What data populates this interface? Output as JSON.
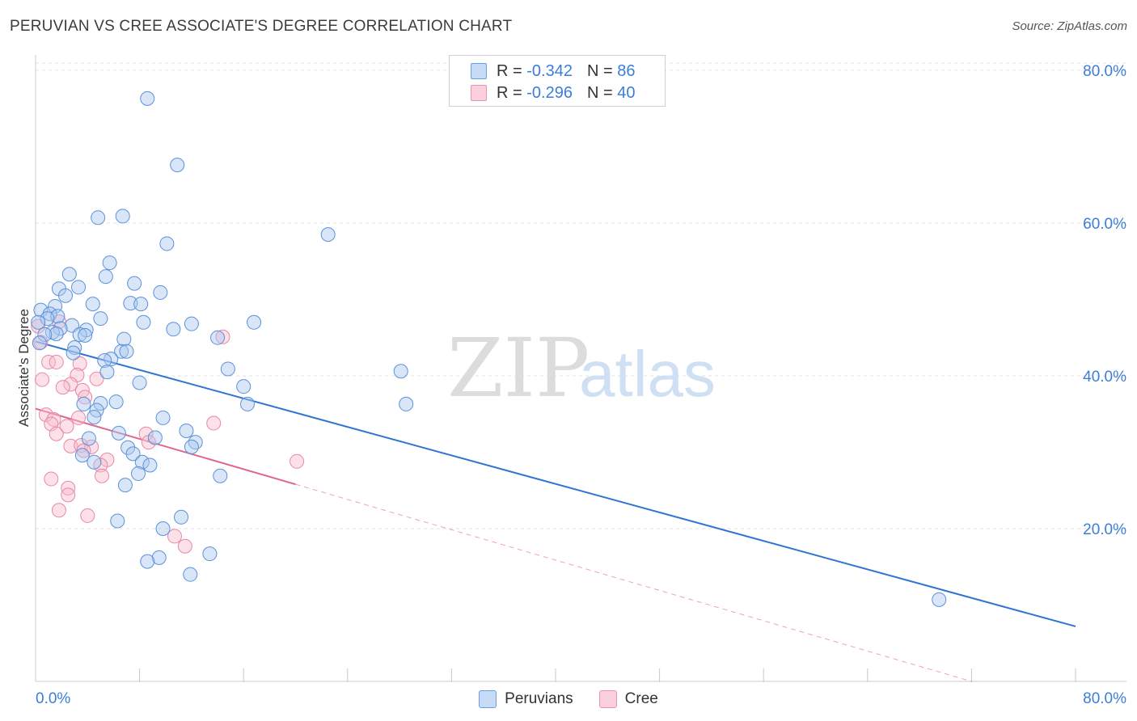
{
  "header": {
    "title": "PERUVIAN VS CREE ASSOCIATE'S DEGREE CORRELATION CHART",
    "source": "Source: ZipAtlas.com"
  },
  "watermark": {
    "zip": "ZIP",
    "atlas": "atlas"
  },
  "legend": {
    "rows": [
      {
        "r_label": "R =",
        "r_value": "-0.342",
        "n_label": "N =",
        "n_value": "86"
      },
      {
        "r_label": "R =",
        "r_value": "-0.296",
        "n_label": "N =",
        "n_value": "40"
      }
    ]
  },
  "bottom_legend": {
    "peruvians": "Peruvians",
    "cree": "Cree"
  },
  "colors": {
    "peruvian_fill": "#aac8f0",
    "peruvian_stroke": "#5b91d9",
    "peruvian_line": "#2f74d0",
    "cree_fill": "#f8bccd",
    "cree_stroke": "#e887a6",
    "cree_line": "#e0658f",
    "tick_text": "#3b7dd8",
    "grid": "#e0e0e0"
  },
  "chart_data": {
    "type": "scatter",
    "title": "PERUVIAN VS CREE ASSOCIATE'S DEGREE CORRELATION CHART",
    "xlabel": "",
    "ylabel": "Associate's Degree",
    "xlim": [
      0,
      0.8
    ],
    "ylim": [
      0,
      0.82
    ],
    "x_tick_labels": [
      "0.0%",
      "80.0%"
    ],
    "y_ticks": [
      0.2,
      0.4,
      0.6,
      0.8
    ],
    "y_tick_labels": [
      "20.0%",
      "40.0%",
      "60.0%",
      "80.0%"
    ],
    "series": [
      {
        "name": "Peruvians",
        "r": -0.342,
        "n": 86,
        "trend": {
          "x": [
            0.0,
            0.8
          ],
          "y": [
            0.445,
            0.072
          ]
        },
        "points": [
          [
            0.086,
            0.763
          ],
          [
            0.109,
            0.676
          ],
          [
            0.048,
            0.607
          ],
          [
            0.067,
            0.609
          ],
          [
            0.101,
            0.573
          ],
          [
            0.225,
            0.585
          ],
          [
            0.057,
            0.548
          ],
          [
            0.026,
            0.533
          ],
          [
            0.054,
            0.53
          ],
          [
            0.076,
            0.521
          ],
          [
            0.018,
            0.514
          ],
          [
            0.033,
            0.516
          ],
          [
            0.096,
            0.509
          ],
          [
            0.023,
            0.505
          ],
          [
            0.044,
            0.494
          ],
          [
            0.073,
            0.495
          ],
          [
            0.081,
            0.494
          ],
          [
            0.015,
            0.491
          ],
          [
            0.004,
            0.486
          ],
          [
            0.011,
            0.481
          ],
          [
            0.017,
            0.478
          ],
          [
            0.009,
            0.475
          ],
          [
            0.05,
            0.475
          ],
          [
            0.002,
            0.47
          ],
          [
            0.083,
            0.47
          ],
          [
            0.12,
            0.468
          ],
          [
            0.168,
            0.47
          ],
          [
            0.028,
            0.466
          ],
          [
            0.019,
            0.462
          ],
          [
            0.039,
            0.46
          ],
          [
            0.106,
            0.461
          ],
          [
            0.013,
            0.457
          ],
          [
            0.016,
            0.455
          ],
          [
            0.007,
            0.454
          ],
          [
            0.034,
            0.454
          ],
          [
            0.038,
            0.453
          ],
          [
            0.14,
            0.45
          ],
          [
            0.068,
            0.448
          ],
          [
            0.003,
            0.443
          ],
          [
            0.03,
            0.437
          ],
          [
            0.029,
            0.43
          ],
          [
            0.066,
            0.432
          ],
          [
            0.07,
            0.432
          ],
          [
            0.058,
            0.422
          ],
          [
            0.053,
            0.42
          ],
          [
            0.148,
            0.409
          ],
          [
            0.281,
            0.406
          ],
          [
            0.055,
            0.405
          ],
          [
            0.08,
            0.391
          ],
          [
            0.16,
            0.386
          ],
          [
            0.037,
            0.363
          ],
          [
            0.05,
            0.364
          ],
          [
            0.062,
            0.366
          ],
          [
            0.163,
            0.363
          ],
          [
            0.285,
            0.363
          ],
          [
            0.047,
            0.355
          ],
          [
            0.045,
            0.346
          ],
          [
            0.098,
            0.345
          ],
          [
            0.064,
            0.325
          ],
          [
            0.116,
            0.328
          ],
          [
            0.041,
            0.318
          ],
          [
            0.092,
            0.319
          ],
          [
            0.123,
            0.313
          ],
          [
            0.12,
            0.307
          ],
          [
            0.071,
            0.306
          ],
          [
            0.036,
            0.296
          ],
          [
            0.075,
            0.298
          ],
          [
            0.045,
            0.287
          ],
          [
            0.082,
            0.287
          ],
          [
            0.088,
            0.283
          ],
          [
            0.079,
            0.272
          ],
          [
            0.142,
            0.269
          ],
          [
            0.069,
            0.257
          ],
          [
            0.112,
            0.215
          ],
          [
            0.063,
            0.21
          ],
          [
            0.098,
            0.2
          ],
          [
            0.134,
            0.167
          ],
          [
            0.095,
            0.162
          ],
          [
            0.086,
            0.157
          ],
          [
            0.119,
            0.14
          ],
          [
            0.695,
            0.107
          ]
        ]
      },
      {
        "name": "Cree",
        "r": -0.296,
        "n": 40,
        "trend": {
          "x": [
            0.0,
            0.2
          ],
          "y": [
            0.357,
            0.258
          ]
        },
        "trend_dashed": {
          "x": [
            0.2,
            0.72
          ],
          "y": [
            0.258,
            0.0
          ]
        },
        "points": [
          [
            0.002,
            0.465
          ],
          [
            0.004,
            0.444
          ],
          [
            0.018,
            0.471
          ],
          [
            0.144,
            0.451
          ],
          [
            0.01,
            0.418
          ],
          [
            0.016,
            0.418
          ],
          [
            0.034,
            0.416
          ],
          [
            0.005,
            0.395
          ],
          [
            0.032,
            0.401
          ],
          [
            0.047,
            0.396
          ],
          [
            0.027,
            0.389
          ],
          [
            0.021,
            0.385
          ],
          [
            0.036,
            0.381
          ],
          [
            0.038,
            0.372
          ],
          [
            0.008,
            0.349
          ],
          [
            0.014,
            0.343
          ],
          [
            0.033,
            0.345
          ],
          [
            0.012,
            0.337
          ],
          [
            0.024,
            0.334
          ],
          [
            0.137,
            0.338
          ],
          [
            0.016,
            0.324
          ],
          [
            0.085,
            0.324
          ],
          [
            0.087,
            0.313
          ],
          [
            0.027,
            0.308
          ],
          [
            0.035,
            0.309
          ],
          [
            0.043,
            0.307
          ],
          [
            0.037,
            0.302
          ],
          [
            0.055,
            0.29
          ],
          [
            0.05,
            0.283
          ],
          [
            0.201,
            0.288
          ],
          [
            0.051,
            0.269
          ],
          [
            0.012,
            0.265
          ],
          [
            0.025,
            0.253
          ],
          [
            0.025,
            0.244
          ],
          [
            0.018,
            0.224
          ],
          [
            0.04,
            0.217
          ],
          [
            0.107,
            0.19
          ],
          [
            0.115,
            0.177
          ]
        ]
      }
    ]
  }
}
